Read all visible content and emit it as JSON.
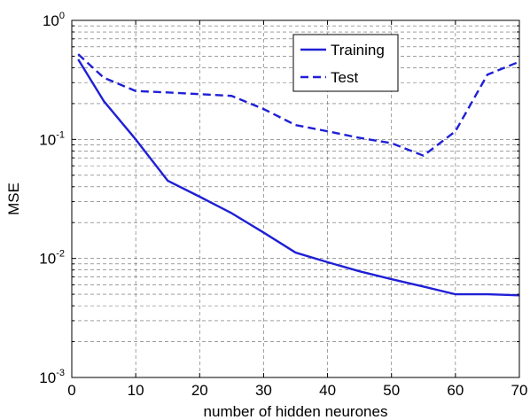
{
  "chart_data": {
    "type": "line",
    "xlabel": "number of hidden neurones",
    "ylabel": "MSE",
    "xlim": [
      0,
      70
    ],
    "ylim": [
      0.001,
      1
    ],
    "yscale": "log",
    "grid": true,
    "legend_position": "top-right",
    "x_ticks": [
      "0",
      "10",
      "20",
      "30",
      "40",
      "50",
      "60",
      "70"
    ],
    "y_ticks": [
      {
        "base": "10",
        "exp": "-3",
        "value": 0.001
      },
      {
        "base": "10",
        "exp": "-2",
        "value": 0.01
      },
      {
        "base": "10",
        "exp": "-1",
        "value": 0.1
      },
      {
        "base": "10",
        "exp": "0",
        "value": 1
      }
    ],
    "series": [
      {
        "name": "Training",
        "style": "solid",
        "color": "#1f1fd6",
        "x": [
          1,
          5,
          10,
          15,
          20,
          25,
          30,
          35,
          40,
          45,
          50,
          55,
          60,
          65,
          70
        ],
        "y": [
          0.47,
          0.21,
          0.1,
          0.045,
          0.033,
          0.024,
          0.0165,
          0.0112,
          0.0093,
          0.0078,
          0.0067,
          0.0058,
          0.005,
          0.005,
          0.0049
        ]
      },
      {
        "name": "Test",
        "style": "dashed",
        "color": "#1f1fd6",
        "x": [
          1,
          5,
          10,
          15,
          20,
          25,
          30,
          35,
          40,
          45,
          50,
          55,
          60,
          65,
          70
        ],
        "y": [
          0.52,
          0.33,
          0.255,
          0.248,
          0.24,
          0.232,
          0.18,
          0.132,
          0.117,
          0.103,
          0.093,
          0.073,
          0.117,
          0.35,
          0.45
        ]
      }
    ]
  }
}
